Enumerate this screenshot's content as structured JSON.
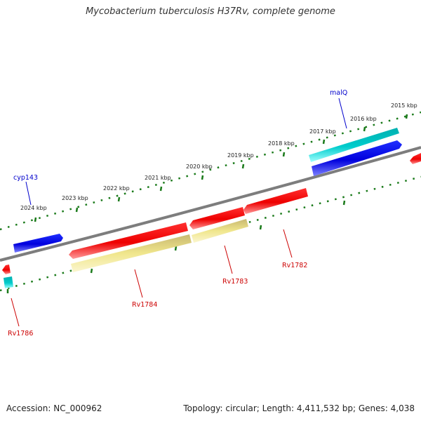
{
  "title": "Mycobacterium tuberculosis H37Rv, complete genome",
  "footer": {
    "accession": "Accession: NC_000962",
    "summary": "Topology: circular; Length: 4,411,532 bp; Genes: 4,038"
  },
  "map": {
    "kbp_ticks": [
      "2015 kbp",
      "2016 kbp",
      "2017 kbp",
      "2018 kbp",
      "2019 kbp",
      "2020 kbp",
      "2021 kbp",
      "2022 kbp",
      "2023 kbp",
      "2024 kbp"
    ],
    "genes": [
      {
        "label": "malQ",
        "color": "#0000cc"
      },
      {
        "label": "cyp143",
        "color": "#0000cc"
      },
      {
        "label": "Rv1782",
        "color": "#cc0000"
      },
      {
        "label": "Rv1783",
        "color": "#cc0000"
      },
      {
        "label": "Rv1784",
        "color": "#cc0000"
      },
      {
        "label": "Rv1786",
        "color": "#cc0000"
      }
    ],
    "colors": {
      "backbone": "#808080",
      "tick": "#1a7a1a",
      "cds_red": "#ff0000",
      "cds_blue": "#0000ee",
      "cds_cyan": "#00cccc",
      "feature_yellow": "#f0e68c"
    }
  }
}
